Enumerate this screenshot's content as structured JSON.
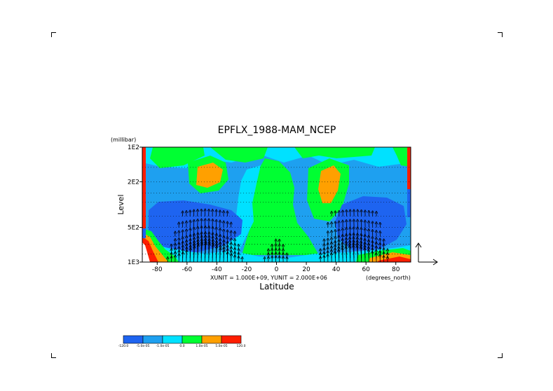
{
  "chart_data": {
    "type": "heatmap",
    "title": "EPFLX_1988-MAM_NCEP",
    "xlabel": "Latitude",
    "ylabel": "Level",
    "y_unit": "(millibar)",
    "x_unit": "(degrees_north)",
    "vector_units": "XUNIT = 1.000E+09, YUNIT = 2.000E+06",
    "x_range": [
      -90,
      90
    ],
    "y_range_mbar": [
      1000,
      100
    ],
    "y_scale": "log",
    "x_ticks": [
      -80,
      -60,
      -40,
      -20,
      0,
      20,
      40,
      60,
      80
    ],
    "x_tick_labels": [
      "-80",
      "-60",
      "-40",
      "-20",
      "0",
      "20",
      "40",
      "60",
      "80"
    ],
    "y_ticks": [
      1000,
      500,
      200,
      100
    ],
    "y_tick_labels": [
      "1E3",
      "5E2",
      "2E2",
      "1E2"
    ],
    "grid": "dotted horizontal lines",
    "colorbar": {
      "colors": [
        "#1e64f0",
        "#1ea0f0",
        "#00e1ff",
        "#00ff32",
        "#ffa000",
        "#ff1e00"
      ],
      "labels": [
        "-120.0",
        "-5.0e-05",
        "-1.0e-05",
        "0.0",
        "1.0e-05",
        "5.0e-05",
        "120.0"
      ]
    },
    "overlay": "Eliassen-Palm flux vectors, strongest near 1000-500 mbar in midlatitudes (about 40-70 degrees in both hemispheres)"
  }
}
